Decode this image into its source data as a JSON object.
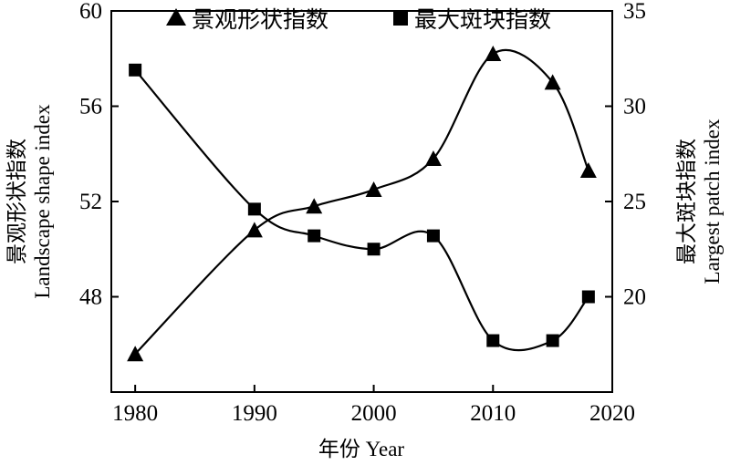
{
  "chart_data": {
    "type": "line",
    "x": [
      1980,
      1990,
      1995,
      2000,
      2005,
      2010,
      2015,
      2018
    ],
    "xlim": [
      1978,
      2020
    ],
    "x_ticks": [
      1980,
      1990,
      2000,
      2010,
      2020
    ],
    "xlabel": "年份 Year",
    "y_left": {
      "label_cn": "景观形状指数",
      "label_en": "Landscape shape index",
      "lim": [
        44,
        60
      ],
      "ticks": [
        48,
        52,
        56,
        60
      ]
    },
    "y_right": {
      "label_cn": "最大斑块指数",
      "label_en": "Largest patch index",
      "lim": [
        15,
        35
      ],
      "ticks": [
        20,
        25,
        30,
        35
      ]
    },
    "series": [
      {
        "name": "景观形状指数",
        "axis": "left",
        "marker": "triangle",
        "values": [
          45.6,
          50.8,
          51.8,
          52.5,
          53.8,
          58.2,
          57.0,
          53.3
        ]
      },
      {
        "name": "最大斑块指数",
        "axis": "right",
        "marker": "square",
        "values": [
          31.9,
          24.6,
          23.2,
          22.5,
          23.2,
          17.7,
          17.7,
          20.0
        ]
      }
    ],
    "legend_position": "top",
    "grid": false,
    "color": "#000000"
  }
}
